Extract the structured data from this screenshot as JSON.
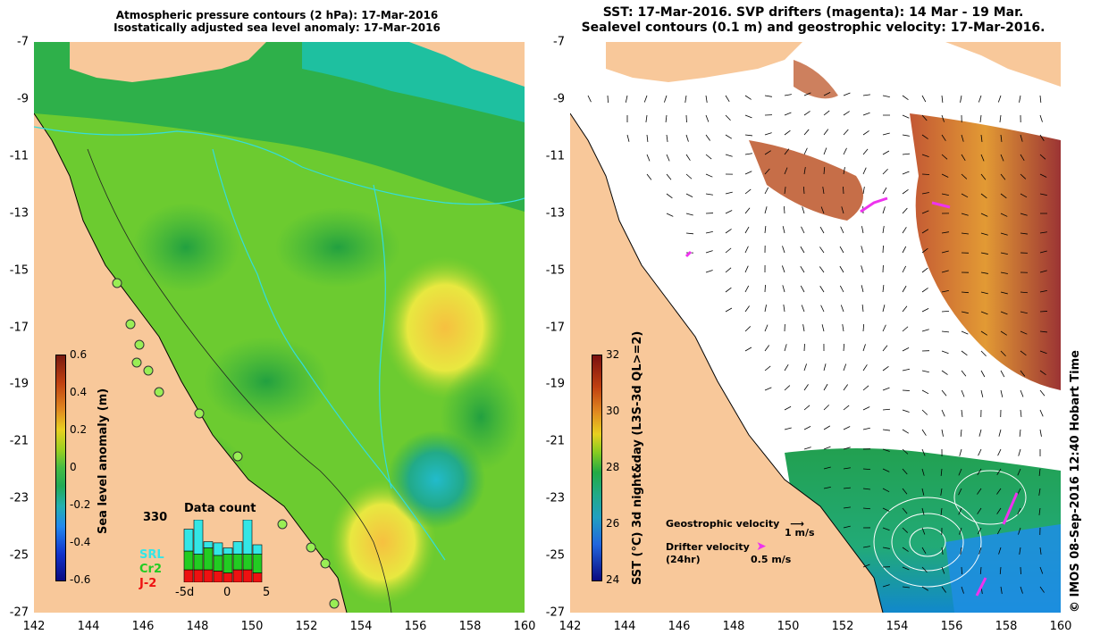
{
  "left_panel": {
    "title_line1": "Atmospheric pressure contours (2 hPa): 17-Mar-2016",
    "title_line2": "Isostatically adjusted sea level anomaly: 17-Mar-2016",
    "colorbar_label": "Sea level anomaly (m)",
    "colorbar_ticks": [
      "0.6",
      "0.4",
      "0.2",
      "0",
      "-0.2",
      "-0.4",
      "-0.6"
    ],
    "inset": {
      "title": "Data count",
      "max_value": "330",
      "legend": [
        {
          "name": "SRL",
          "color": "#33e6e6"
        },
        {
          "name": "Cr2",
          "color": "#22cc22"
        },
        {
          "name": "J-2",
          "color": "#ee1111"
        }
      ],
      "x_ticks": [
        "-5d",
        "0",
        "5"
      ],
      "bars": [
        {
          "srl": 0.35,
          "cr2": 0.3,
          "j2": 0.2
        },
        {
          "srl": 0.55,
          "cr2": 0.25,
          "j2": 0.2
        },
        {
          "srl": 0.1,
          "cr2": 0.35,
          "j2": 0.2
        },
        {
          "srl": 0.2,
          "cr2": 0.25,
          "j2": 0.18
        },
        {
          "srl": 0.1,
          "cr2": 0.3,
          "j2": 0.15
        },
        {
          "srl": 0.2,
          "cr2": 0.25,
          "j2": 0.2
        },
        {
          "srl": 0.55,
          "cr2": 0.25,
          "j2": 0.2
        },
        {
          "srl": 0.15,
          "cr2": 0.3,
          "j2": 0.15
        }
      ]
    }
  },
  "right_panel": {
    "title_line1": "SST: 17-Mar-2016. SVP drifters (magenta): 14 Mar - 19 Mar.",
    "title_line2": "Sealevel contours (0.1 m) and geostrophic velocity: 17-Mar-2016.",
    "colorbar_label": "SST (°C) 3d night&day (L3S-3d QL>=2)",
    "colorbar_ticks": [
      "32",
      "30",
      "28",
      "26",
      "24"
    ],
    "geostrophic_label": "Geostrophic velocity",
    "geostrophic_scale": "1 m/s",
    "drifter_label": "Drifter velocity",
    "drifter_sub": "(24hr)",
    "drifter_scale": "0.5 m/s",
    "copyright": "© IMOS 08-Sep-2016 12:40 Hobart Time"
  },
  "axes": {
    "x_ticks": [
      "142",
      "144",
      "146",
      "148",
      "150",
      "152",
      "154",
      "156",
      "158",
      "160"
    ],
    "y_ticks": [
      "-7",
      "-9",
      "-11",
      "-13",
      "-15",
      "-17",
      "-19",
      "-21",
      "-23",
      "-25",
      "-27"
    ],
    "x_range": [
      142,
      160
    ],
    "y_range": [
      -27,
      -7
    ]
  },
  "colors": {
    "land": "#f8c89a",
    "sea_level_base": "#66cc33",
    "ocean_white": "#ffffff",
    "drifter": "#ee33ee",
    "contour_cyan": "#33dddd"
  }
}
